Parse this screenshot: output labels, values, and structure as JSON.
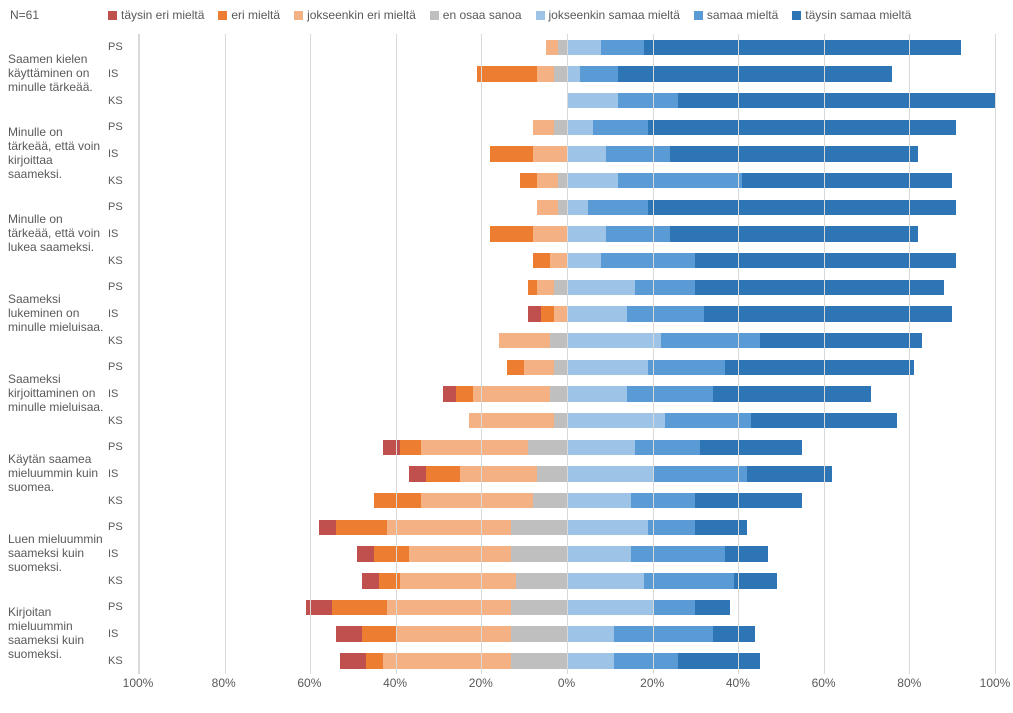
{
  "meta": {
    "n_label": "N=61",
    "background_color": "#ffffff",
    "grid_color": "#d9d9d9",
    "text_color": "#595959",
    "font_family": "Segoe UI, Arial, sans-serif",
    "base_fontsize": 12
  },
  "legend": [
    {
      "key": "täysin eri mieltä",
      "color": "#c0504d"
    },
    {
      "key": "eri mieltä",
      "color": "#ed7d31"
    },
    {
      "key": "jokseenkin eri mieltä",
      "color": "#f4b183"
    },
    {
      "key": "en osaa sanoa",
      "color": "#bfbfbf"
    },
    {
      "key": "jokseenkin samaa mieltä",
      "color": "#9dc3e6"
    },
    {
      "key": "samaa mieltä",
      "color": "#5b9bd5"
    },
    {
      "key": "täysin samaa mieltä",
      "color": "#2e75b6"
    }
  ],
  "axis": {
    "type": "diverging-stacked-bar",
    "left_limit": 100,
    "right_limit": 100,
    "ticks": [
      100,
      80,
      60,
      40,
      20,
      0,
      20,
      40,
      60,
      80,
      100
    ],
    "unit": "%"
  },
  "sublabels": [
    "PS",
    "IS",
    "KS"
  ],
  "questions": [
    {
      "label": "Saamen kielen käyttäminen on minulle tärkeää.",
      "rows": [
        {
          "sub": "PS",
          "neg": [
            0,
            0,
            3,
            2
          ],
          "pos": [
            8,
            10,
            74
          ]
        },
        {
          "sub": "IS",
          "neg": [
            0,
            14,
            4,
            3
          ],
          "pos": [
            3,
            9,
            64
          ]
        },
        {
          "sub": "KS",
          "neg": [
            0,
            0,
            0,
            0
          ],
          "pos": [
            12,
            14,
            74
          ]
        }
      ]
    },
    {
      "label": "Minulle on tärkeää, että voin kirjoittaa saameksi.",
      "rows": [
        {
          "sub": "PS",
          "neg": [
            0,
            0,
            5,
            3
          ],
          "pos": [
            6,
            13,
            72
          ]
        },
        {
          "sub": "IS",
          "neg": [
            0,
            10,
            8,
            0
          ],
          "pos": [
            9,
            15,
            58
          ]
        },
        {
          "sub": "KS",
          "neg": [
            0,
            4,
            5,
            2
          ],
          "pos": [
            12,
            29,
            49
          ]
        }
      ]
    },
    {
      "label": "Minulle on tärkeää, että voin lukea saameksi.",
      "rows": [
        {
          "sub": "PS",
          "neg": [
            0,
            0,
            5,
            2
          ],
          "pos": [
            5,
            14,
            72
          ]
        },
        {
          "sub": "IS",
          "neg": [
            0,
            10,
            8,
            0
          ],
          "pos": [
            9,
            15,
            58
          ]
        },
        {
          "sub": "KS",
          "neg": [
            0,
            4,
            4,
            0
          ],
          "pos": [
            8,
            22,
            61
          ]
        }
      ]
    },
    {
      "label": "Saameksi lukeminen on minulle mieluisaa.",
      "rows": [
        {
          "sub": "PS",
          "neg": [
            0,
            2,
            4,
            3
          ],
          "pos": [
            16,
            14,
            58
          ]
        },
        {
          "sub": "IS",
          "neg": [
            3,
            3,
            3,
            0
          ],
          "pos": [
            14,
            18,
            58
          ]
        },
        {
          "sub": "KS",
          "neg": [
            0,
            0,
            12,
            4
          ],
          "pos": [
            22,
            23,
            38
          ]
        }
      ]
    },
    {
      "label": "Saameksi kirjoittaminen on minulle mieluisaa.",
      "rows": [
        {
          "sub": "PS",
          "neg": [
            0,
            4,
            7,
            3
          ],
          "pos": [
            19,
            18,
            44
          ]
        },
        {
          "sub": "IS",
          "neg": [
            3,
            4,
            18,
            4
          ],
          "pos": [
            14,
            20,
            37
          ]
        },
        {
          "sub": "KS",
          "neg": [
            0,
            0,
            20,
            3
          ],
          "pos": [
            23,
            20,
            34
          ]
        }
      ]
    },
    {
      "label": "Käytän saamea mieluummin kuin suomea.",
      "rows": [
        {
          "sub": "PS",
          "neg": [
            4,
            5,
            25,
            9
          ],
          "pos": [
            16,
            15,
            24
          ]
        },
        {
          "sub": "IS",
          "neg": [
            4,
            8,
            18,
            7
          ],
          "pos": [
            20,
            22,
            20
          ]
        },
        {
          "sub": "KS",
          "neg": [
            0,
            11,
            26,
            8
          ],
          "pos": [
            15,
            15,
            25
          ]
        }
      ]
    },
    {
      "label": "Luen mieluummin saameksi kuin suomeksi.",
      "rows": [
        {
          "sub": "PS",
          "neg": [
            4,
            12,
            29,
            13
          ],
          "pos": [
            19,
            11,
            12
          ]
        },
        {
          "sub": "IS",
          "neg": [
            4,
            8,
            24,
            13
          ],
          "pos": [
            15,
            22,
            10
          ]
        },
        {
          "sub": "KS",
          "neg": [
            4,
            5,
            27,
            12
          ],
          "pos": [
            18,
            21,
            10
          ]
        }
      ]
    },
    {
      "label": "Kirjoitan mieluummin saameksi kuin suomeksi.",
      "rows": [
        {
          "sub": "PS",
          "neg": [
            6,
            13,
            29,
            13
          ],
          "pos": [
            20,
            10,
            8
          ]
        },
        {
          "sub": "IS",
          "neg": [
            6,
            8,
            27,
            13
          ],
          "pos": [
            11,
            23,
            10
          ]
        },
        {
          "sub": "KS",
          "neg": [
            6,
            4,
            30,
            13
          ],
          "pos": [
            11,
            15,
            19
          ]
        }
      ]
    }
  ]
}
